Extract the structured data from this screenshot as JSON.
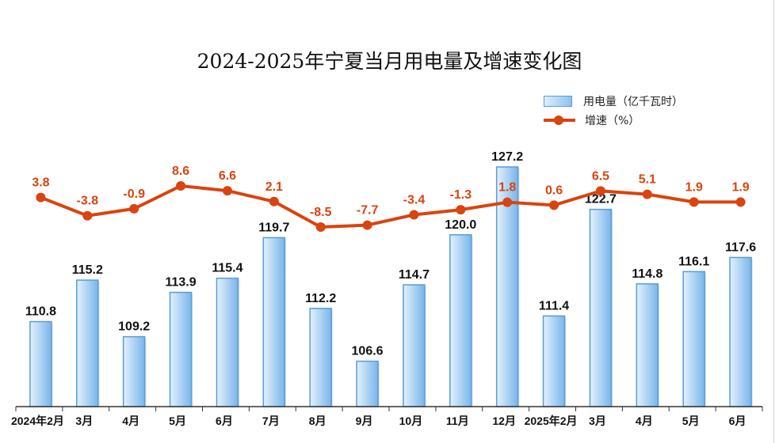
{
  "page": {
    "title": "2024-2025年宁夏当月用电量及增速变化图"
  },
  "legend": {
    "bar_label": "用电量（亿千瓦时）",
    "line_label": "增速（%）"
  },
  "colors": {
    "bar_border": "#5b9bd5",
    "bar_fill_light": "#e3f1fd",
    "bar_fill_dark": "#79b5ea",
    "line": "#d9440f",
    "line_label": "#d9440f",
    "value_label": "#111111",
    "axis": "#333333"
  },
  "chart_data": {
    "type": "bar",
    "categories": [
      "2024年2月",
      "3月",
      "4月",
      "5月",
      "6月",
      "7月",
      "8月",
      "9月",
      "10月",
      "11月",
      "12月",
      "2025年2月",
      "3月",
      "4月",
      "5月",
      "6月"
    ],
    "series": [
      {
        "name": "用电量（亿千瓦时）",
        "type": "bar",
        "values": [
          110.8,
          115.2,
          109.2,
          113.9,
          115.4,
          119.7,
          112.2,
          106.6,
          114.7,
          120.0,
          127.2,
          111.4,
          122.7,
          114.8,
          116.1,
          117.6
        ]
      },
      {
        "name": "增速（%）",
        "type": "line",
        "values": [
          3.8,
          -3.8,
          -0.9,
          8.6,
          6.6,
          2.1,
          -8.5,
          -7.7,
          -3.4,
          -1.3,
          1.8,
          0.6,
          6.5,
          5.1,
          1.9,
          1.9
        ]
      }
    ],
    "bar_labels": [
      "110.8",
      "115.2",
      "109.2",
      "113.9",
      "115.4",
      "119.7",
      "112.2",
      "106.6",
      "114.7",
      "120.0",
      "127.2",
      "111.4",
      "122.7",
      "114.8",
      "116.1",
      "117.6"
    ],
    "line_labels": [
      "3.8",
      "-3.8",
      "-0.9",
      "8.6",
      "6.6",
      "2.1",
      "-8.5",
      "-7.7",
      "-3.4",
      "-1.3",
      "1.8",
      "0.6",
      "6.5",
      "5.1",
      "1.9",
      "1.9"
    ],
    "title": "2024-2025年宁夏当月用电量及增速变化图",
    "bar_axis_range": [
      103.8,
      127.2
    ],
    "line_axis_range": [
      -8.5,
      8.6
    ],
    "grid": false,
    "legend_position": "top-right"
  }
}
